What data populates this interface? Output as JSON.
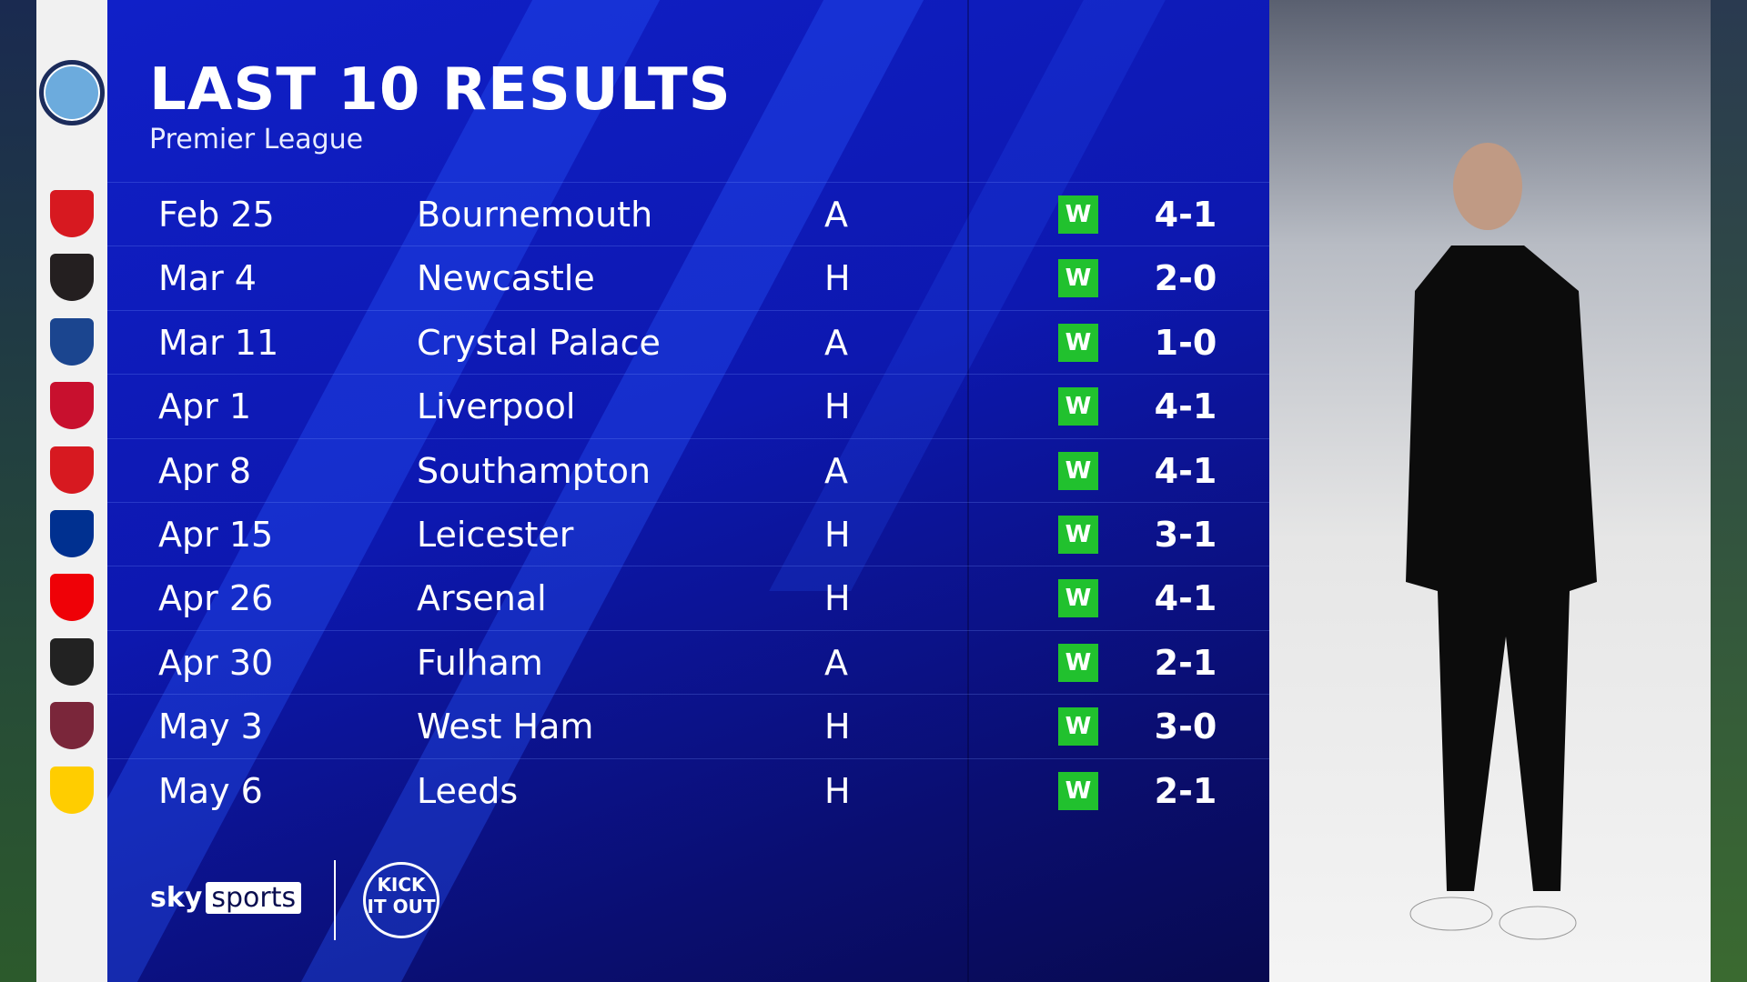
{
  "header": {
    "title": "LAST 10 RESULTS",
    "subtitle": "Premier League",
    "team_crest": "manchester-city-crest"
  },
  "results": [
    {
      "date": "Feb 25",
      "opponent": "Bournemouth",
      "venue": "A",
      "result": "W",
      "score": "4-1",
      "crest_color": "#d71920"
    },
    {
      "date": "Mar 4",
      "opponent": "Newcastle",
      "venue": "H",
      "result": "W",
      "score": "2-0",
      "crest_color": "#241f20"
    },
    {
      "date": "Mar 11",
      "opponent": "Crystal Palace",
      "venue": "A",
      "result": "W",
      "score": "1-0",
      "crest_color": "#1b458f"
    },
    {
      "date": "Apr 1",
      "opponent": "Liverpool",
      "venue": "H",
      "result": "W",
      "score": "4-1",
      "crest_color": "#c8102e"
    },
    {
      "date": "Apr 8",
      "opponent": "Southampton",
      "venue": "A",
      "result": "W",
      "score": "4-1",
      "crest_color": "#d71920"
    },
    {
      "date": "Apr 15",
      "opponent": "Leicester",
      "venue": "H",
      "result": "W",
      "score": "3-1",
      "crest_color": "#003090"
    },
    {
      "date": "Apr 26",
      "opponent": "Arsenal",
      "venue": "H",
      "result": "W",
      "score": "4-1",
      "crest_color": "#ef0107"
    },
    {
      "date": "Apr 30",
      "opponent": "Fulham",
      "venue": "A",
      "result": "W",
      "score": "2-1",
      "crest_color": "#222222"
    },
    {
      "date": "May 3",
      "opponent": "West Ham",
      "venue": "H",
      "result": "W",
      "score": "3-0",
      "crest_color": "#7a263a"
    },
    {
      "date": "May 6",
      "opponent": "Leeds",
      "venue": "H",
      "result": "W",
      "score": "2-1",
      "crest_color": "#ffcd00"
    }
  ],
  "colors": {
    "win": "#21c12e",
    "panel": "#0d18b0",
    "city_blue": "#6cabdd"
  },
  "footer": {
    "sky": "sky",
    "sports": "sports",
    "kick_it_out": "KICK IT OUT"
  }
}
